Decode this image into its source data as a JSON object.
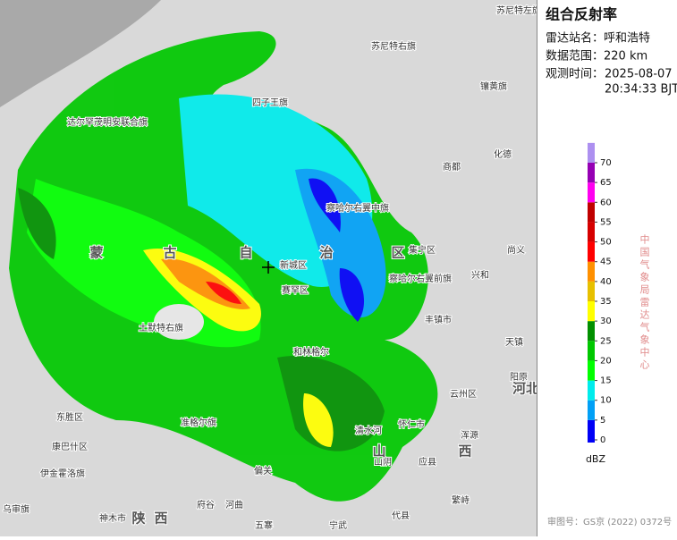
{
  "panel": {
    "title": "组合反射率",
    "station": "雷达站名：呼和浩特",
    "range": "数据范围：220 km",
    "time_label": "观测时间：",
    "time_date": "2025-08-07",
    "time_clock": "20:34:33 BJT",
    "org": "中国气象局雷达气象中心",
    "approval": "审图号：GS京 (2022) 0372号"
  },
  "legend": {
    "unit": "dBZ",
    "ticks": [
      0,
      5,
      10,
      15,
      20,
      25,
      30,
      35,
      40,
      45,
      50,
      55,
      60,
      65,
      70
    ],
    "colors": [
      "#0000f6",
      "#01a0f6",
      "#00ecec",
      "#01ff00",
      "#00c800",
      "#019000",
      "#ffff00",
      "#e7c000",
      "#ff9000",
      "#ff0000",
      "#d60000",
      "#c00000",
      "#ff00f0",
      "#9600b4",
      "#ad90f0"
    ]
  },
  "map": {
    "places": [
      "苏尼特右旗",
      "镶黄旗",
      "四子王旗",
      "达尔罕茂明安联合旗",
      "商都",
      "化德",
      "察哈尔右翼中旗",
      "新城区",
      "集宁区",
      "丰镇市",
      "兴和",
      "尚义",
      "和林格尔",
      "土默特右旗",
      "东胜区",
      "康巴什区",
      "伊金霍洛旗",
      "准格尔旗",
      "怀仁市",
      "云州区",
      "天镇",
      "阳原",
      "浑源",
      "应县",
      "山阴",
      "繁峙",
      "代县",
      "宁武",
      "五寨",
      "河曲",
      "府谷",
      "神木市",
      "乌审旗",
      "偏关",
      "苏尼特左旗",
      "察哈尔右翼前旗",
      "赛罕区",
      "清水河"
    ],
    "regions": [
      "古",
      "自",
      "治",
      "区",
      "陕",
      "西",
      "山",
      "西",
      "河北",
      "蒙"
    ]
  }
}
